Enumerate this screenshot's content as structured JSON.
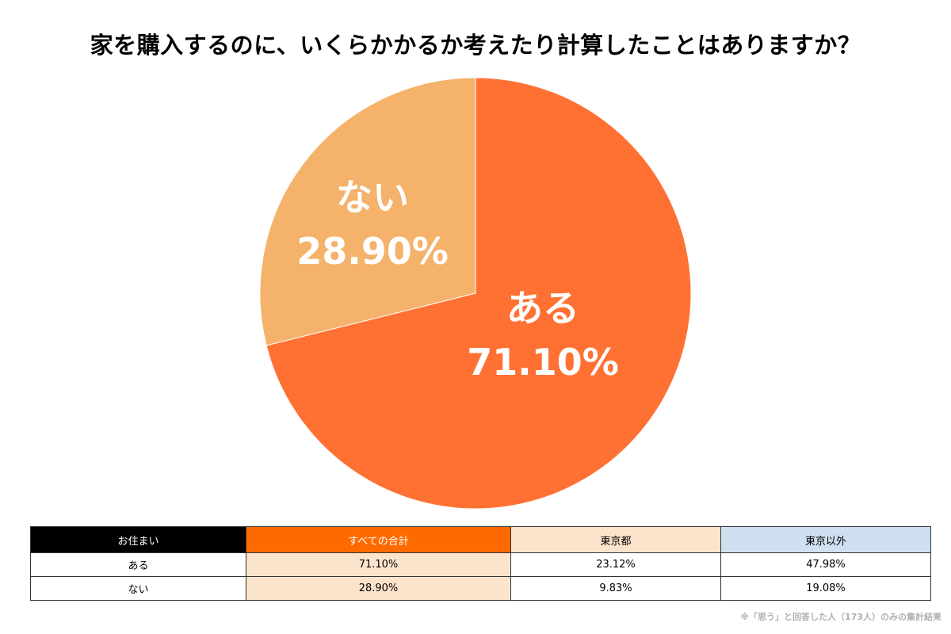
{
  "chart_data": {
    "type": "pie",
    "title": "家を購入するのに、いくらかかるか考えたり計算したことはありますか？",
    "slices": [
      {
        "label": "ある",
        "value": 71.1,
        "display": "71.10%",
        "color": "#ff7133"
      },
      {
        "label": "ない",
        "value": 28.9,
        "display": "28.90%",
        "color": "#f4b26b"
      }
    ],
    "start": "12 o'clock",
    "direction": "clockwise"
  },
  "table": {
    "headers": {
      "residence": "お住まい",
      "total": "すべての合計",
      "tokyo": "東京都",
      "other": "東京以外"
    },
    "rows": [
      {
        "label": "ある",
        "total": "71.10%",
        "tokyo": "23.12%",
        "other": "47.98%"
      },
      {
        "label": "ない",
        "total": "28.90%",
        "tokyo": "9.83%",
        "other": "19.08%"
      }
    ]
  },
  "footnote": "※「思う」と回答した人（173人）のみの集計結果"
}
